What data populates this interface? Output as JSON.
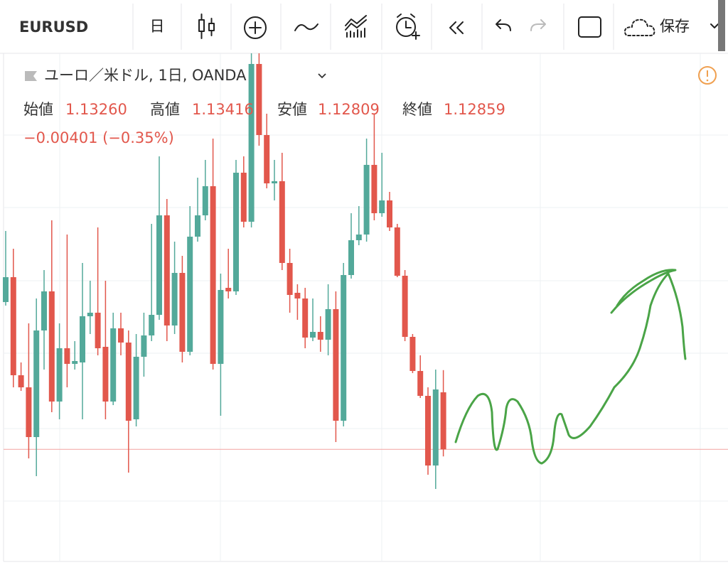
{
  "toolbar": {
    "symbol": "EURUSD",
    "interval": "日",
    "save": "保存"
  },
  "legend": {
    "title": "ユーロ／米ドル, 1日, OANDA",
    "ohlc": [
      {
        "name": "始値",
        "value": "1.13260"
      },
      {
        "name": "高値",
        "value": "1.13416"
      },
      {
        "name": "安値",
        "value": "1.12809"
      },
      {
        "name": "終値",
        "value": "1.12859"
      }
    ],
    "change": "−0.00401 (−0.35%)"
  },
  "chart_data": {
    "type": "candlestick",
    "ylim": [
      1.1207,
      1.15645
    ],
    "up_color": "#53a99a",
    "down_color": "#e2574c",
    "candles": [
      [
        1.13895,
        1.14395,
        1.1387,
        1.1407
      ],
      [
        1.1407,
        1.1427,
        1.13295,
        1.1338
      ],
      [
        1.1338,
        1.1347,
        1.1327,
        1.13295
      ],
      [
        1.13295,
        1.13745,
        1.12795,
        1.12945
      ],
      [
        1.12945,
        1.1392,
        1.1267,
        1.13695
      ],
      [
        1.13695,
        1.1412,
        1.1342,
        1.1397
      ],
      [
        1.1397,
        1.1447,
        1.1312,
        1.13195
      ],
      [
        1.13195,
        1.13745,
        1.1307,
        1.1357
      ],
      [
        1.1357,
        1.1437,
        1.13295,
        1.1346
      ],
      [
        1.1346,
        1.1362,
        1.1342,
        1.1348
      ],
      [
        1.1347,
        1.1417,
        1.1307,
        1.13795
      ],
      [
        1.13795,
        1.14045,
        1.1367,
        1.1382
      ],
      [
        1.1382,
        1.1442,
        1.1352,
        1.1357
      ],
      [
        1.1358,
        1.14045,
        1.1307,
        1.13195
      ],
      [
        1.13195,
        1.1382,
        1.1317,
        1.1371
      ],
      [
        1.1371,
        1.1382,
        1.1352,
        1.1361
      ],
      [
        1.1361,
        1.13695,
        1.12695,
        1.1306
      ],
      [
        1.1307,
        1.1367,
        1.1302,
        1.1351
      ],
      [
        1.1351,
        1.1382,
        1.1337,
        1.1366
      ],
      [
        1.1366,
        1.14445,
        1.1362,
        1.13805
      ],
      [
        1.13805,
        1.1492,
        1.1377,
        1.14505
      ],
      [
        1.14505,
        1.1462,
        1.1362,
        1.1373
      ],
      [
        1.1373,
        1.1432,
        1.1367,
        1.141
      ],
      [
        1.141,
        1.1422,
        1.1347,
        1.13545
      ],
      [
        1.13545,
        1.1457,
        1.1352,
        1.14355
      ],
      [
        1.14355,
        1.1477,
        1.1432,
        1.14505
      ],
      [
        1.14505,
        1.14895,
        1.1447,
        1.1471
      ],
      [
        1.1471,
        1.15045,
        1.1342,
        1.1346
      ],
      [
        1.1346,
        1.14095,
        1.13095,
        1.1398
      ],
      [
        1.13995,
        1.1427,
        1.1392,
        1.1397
      ],
      [
        1.1397,
        1.14895,
        1.13945,
        1.14805
      ],
      [
        1.14805,
        1.1492,
        1.1442,
        1.1446
      ],
      [
        1.1446,
        1.15645,
        1.1442,
        1.1557
      ],
      [
        1.1557,
        1.15645,
        1.14995,
        1.1507
      ],
      [
        1.1507,
        1.1522,
        1.14695,
        1.1473
      ],
      [
        1.1473,
        1.14895,
        1.1461,
        1.14745
      ],
      [
        1.14745,
        1.14945,
        1.1412,
        1.1417
      ],
      [
        1.1417,
        1.1427,
        1.1382,
        1.13945
      ],
      [
        1.1396,
        1.1402,
        1.1377,
        1.1392
      ],
      [
        1.1392,
        1.13995,
        1.1357,
        1.13645
      ],
      [
        1.13645,
        1.1392,
        1.1362,
        1.13685
      ],
      [
        1.13685,
        1.13795,
        1.13545,
        1.1363
      ],
      [
        1.1363,
        1.1402,
        1.1352,
        1.13845
      ],
      [
        1.13845,
        1.1397,
        1.1291,
        1.1306
      ],
      [
        1.1306,
        1.1417,
        1.1302,
        1.14085
      ],
      [
        1.14085,
        1.1452,
        1.1406,
        1.1433
      ],
      [
        1.1433,
        1.1457,
        1.14295,
        1.1437
      ],
      [
        1.1437,
        1.15045,
        1.1432,
        1.1486
      ],
      [
        1.1486,
        1.1522,
        1.1447,
        1.1452
      ],
      [
        1.1452,
        1.14945,
        1.14495,
        1.1461
      ],
      [
        1.1461,
        1.1467,
        1.14395,
        1.1442
      ],
      [
        1.1442,
        1.14445,
        1.1407,
        1.1408
      ],
      [
        1.1408,
        1.1412,
        1.1362,
        1.1365
      ],
      [
        1.1365,
        1.1367,
        1.13395,
        1.1341
      ],
      [
        1.1341,
        1.1352,
        1.1322,
        1.13235
      ],
      [
        1.13235,
        1.13295,
        1.1268,
        1.12745
      ],
      [
        1.12745,
        1.1342,
        1.1258,
        1.1328
      ],
      [
        1.1326,
        1.13416,
        1.12809,
        1.12859
      ]
    ]
  }
}
